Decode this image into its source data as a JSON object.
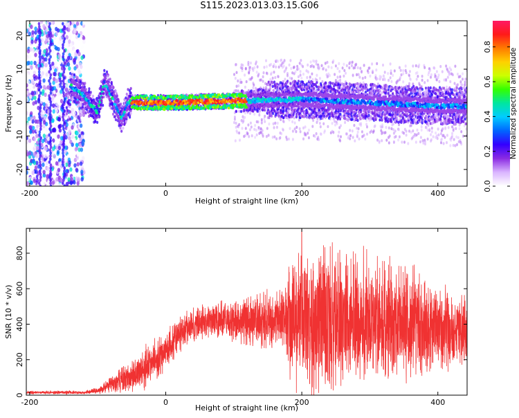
{
  "title": "S115.2023.013.03.15.G06",
  "chart_data": [
    {
      "type": "heatmap",
      "xlabel": "Height of straight line (km)",
      "ylabel": "Frequency (Hz)",
      "xlim": [
        -205,
        443
      ],
      "ylim": [
        -25,
        24.5
      ],
      "xticks": [
        -200,
        0,
        200,
        400
      ],
      "yticks": [
        -20,
        -10,
        0,
        10,
        20
      ],
      "colorbar": {
        "label": "Normalized spectral amplitude",
        "range": [
          0,
          0.95
        ],
        "ticks": [
          "0.0",
          "0.2",
          "0.4",
          "0.6",
          "0.8"
        ],
        "colors": [
          "#ffffff",
          "#d9b3ff",
          "#8a2be2",
          "#3300ff",
          "#0066ff",
          "#00ccff",
          "#00e6a0",
          "#33ff00",
          "#ccff00",
          "#ffd000",
          "#ff7a00",
          "#ff1a1a",
          "#ff1a66"
        ]
      },
      "ridge_center_hz": [
        {
          "x": -140,
          "y": 5
        },
        {
          "x": -120,
          "y": 2
        },
        {
          "x": -100,
          "y": -3
        },
        {
          "x": -90,
          "y": 6
        },
        {
          "x": -75,
          "y": 0
        },
        {
          "x": -65,
          "y": -5
        },
        {
          "x": -55,
          "y": 0
        },
        {
          "x": 0,
          "y": 0
        },
        {
          "x": 100,
          "y": 0.5
        },
        {
          "x": 200,
          "y": 1
        },
        {
          "x": 300,
          "y": 0
        },
        {
          "x": 400,
          "y": -1
        },
        {
          "x": 443,
          "y": -1
        }
      ]
    },
    {
      "type": "line",
      "xlabel": "Height of straight line (km)",
      "ylabel": "SNR (10 * v/v)",
      "xlim": [
        -205,
        443
      ],
      "ylim": [
        0,
        940
      ],
      "xticks": [
        -200,
        0,
        200,
        400
      ],
      "yticks": [
        0,
        200,
        400,
        600,
        800
      ],
      "series": [
        {
          "name": "SNR",
          "color": "#f03232",
          "envelope": [
            {
              "x": -205,
              "mean": 15,
              "amp": 10
            },
            {
              "x": -120,
              "mean": 15,
              "amp": 12
            },
            {
              "x": -100,
              "mean": 25,
              "amp": 20
            },
            {
              "x": -80,
              "mean": 60,
              "amp": 60
            },
            {
              "x": -50,
              "mean": 110,
              "amp": 100
            },
            {
              "x": -30,
              "mean": 150,
              "amp": 140
            },
            {
              "x": 0,
              "mean": 250,
              "amp": 120
            },
            {
              "x": 30,
              "mean": 380,
              "amp": 110
            },
            {
              "x": 60,
              "mean": 420,
              "amp": 120
            },
            {
              "x": 100,
              "mean": 420,
              "amp": 140
            },
            {
              "x": 150,
              "mean": 430,
              "amp": 180
            },
            {
              "x": 175,
              "mean": 430,
              "amp": 200
            },
            {
              "x": 185,
              "mean": 420,
              "amp": 420
            },
            {
              "x": 200,
              "mean": 420,
              "amp": 470
            },
            {
              "x": 300,
              "mean": 420,
              "amp": 430
            },
            {
              "x": 360,
              "mean": 400,
              "amp": 360
            },
            {
              "x": 400,
              "mean": 380,
              "amp": 280
            },
            {
              "x": 443,
              "mean": 360,
              "amp": 230
            }
          ],
          "peak": {
            "x": 200,
            "y": 935
          }
        }
      ]
    }
  ]
}
